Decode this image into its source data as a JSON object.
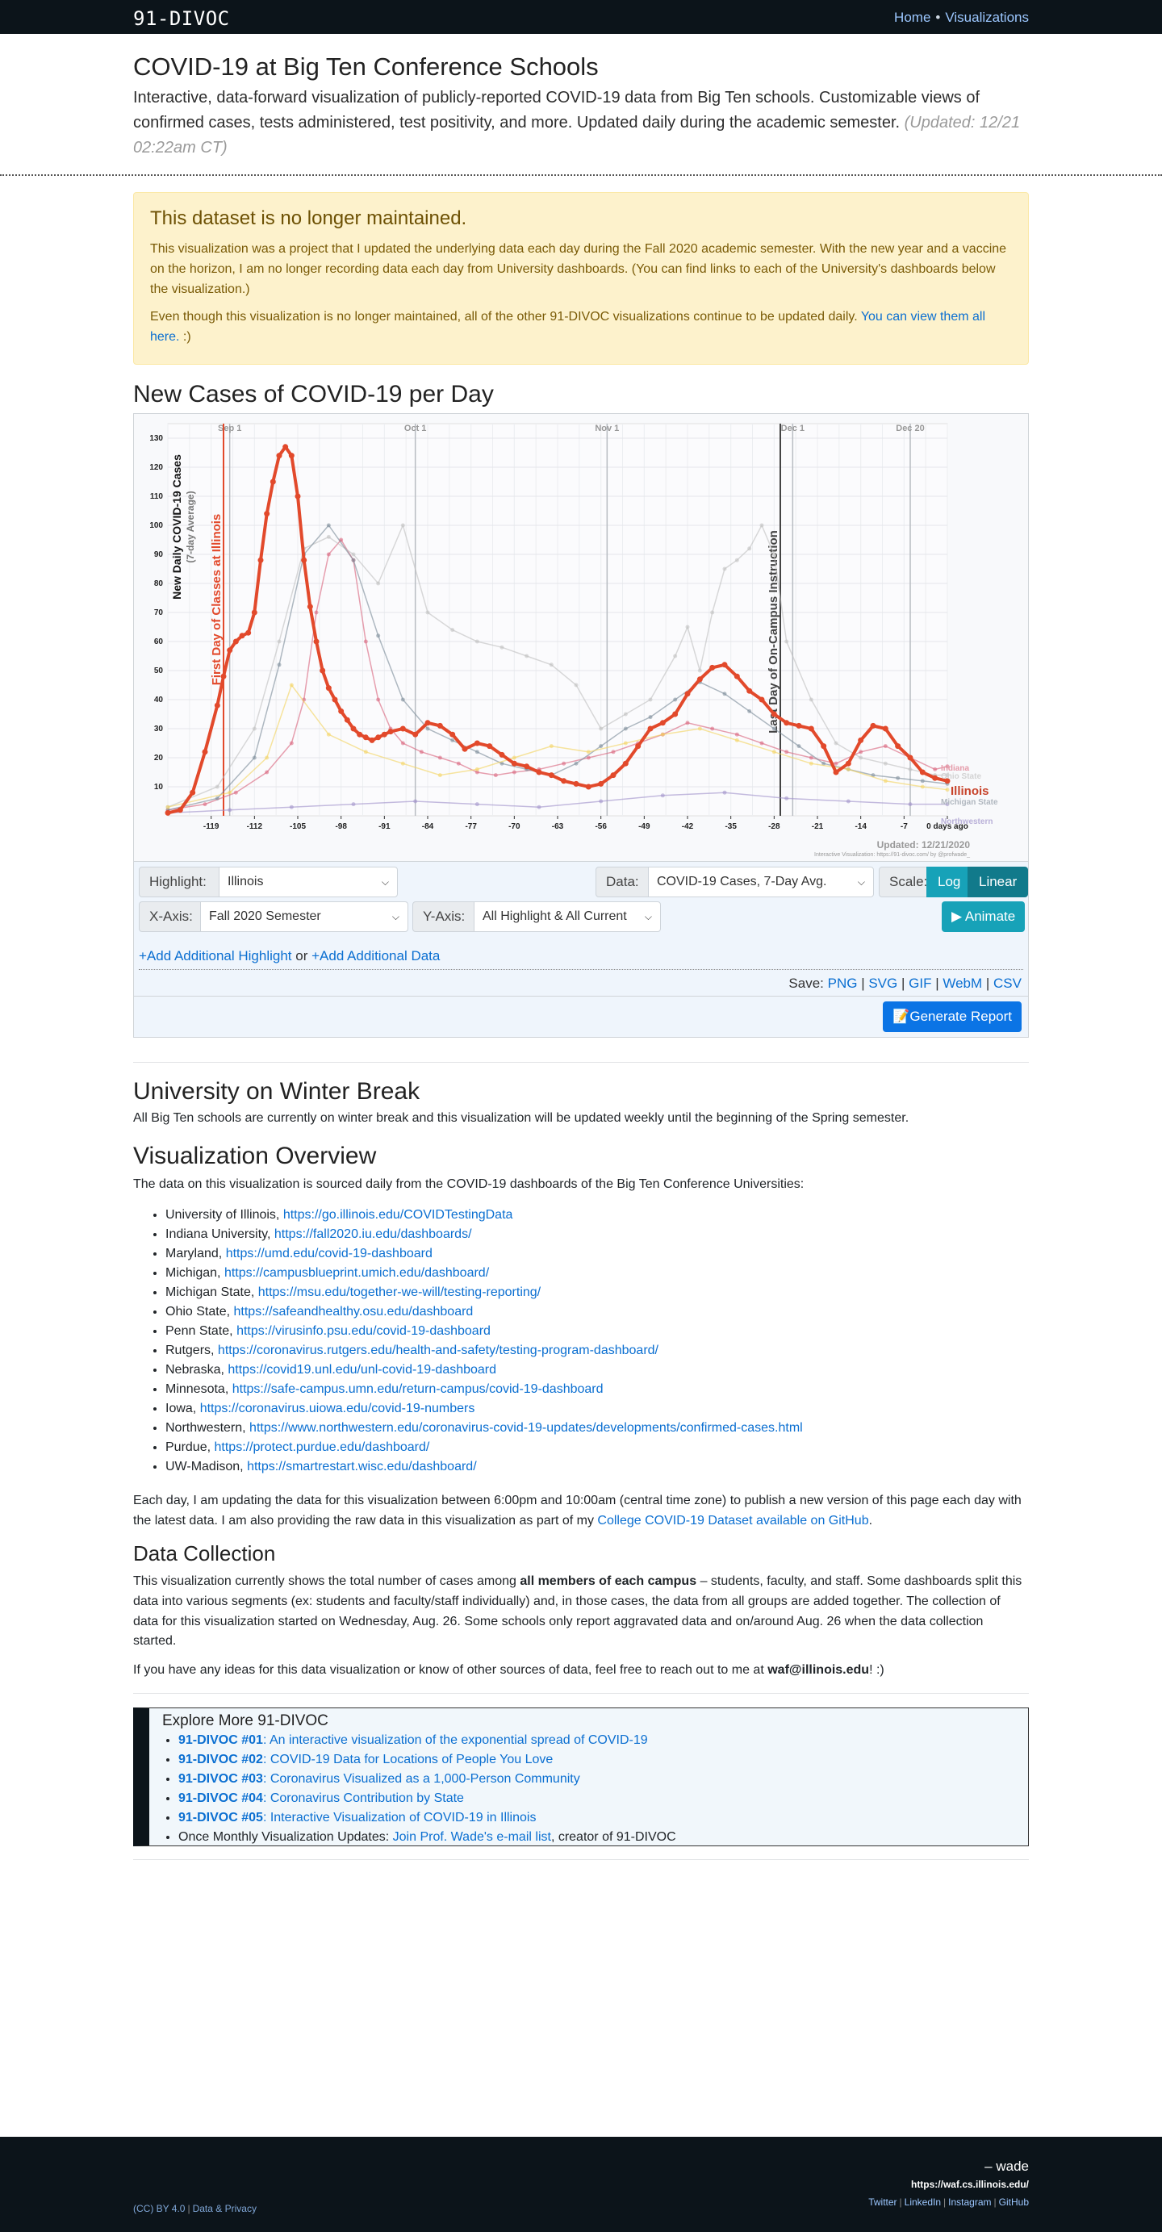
{
  "nav": {
    "brand": "91-DIVOC",
    "links": [
      "Home",
      "Visualizations"
    ],
    "separator": "•"
  },
  "header": {
    "title": "COVID-19 at Big Ten Conference Schools",
    "lead": "Interactive, data-forward visualization of publicly-reported COVID-19 data from Big Ten schools. Customizable views of confirmed cases, tests administered, test positivity, and more. Updated daily during the academic semester.",
    "updated": "(Updated: 12/21 02:22am CT)"
  },
  "alert": {
    "title": "This dataset is no longer maintained.",
    "p1": "This visualization was a project that I updated the underlying data each day during the Fall 2020 academic semester. With the new year and a vaccine on the horizon, I am no longer recording data each day from University dashboards. (You can find links to each of the University's dashboards below the visualization.)",
    "p2_text": "Even though this visualization is no longer maintained, all of the other 91-DIVOC visualizations continue to be updated daily.",
    "p2_link": "You can view them all here.",
    "p2_end": ":)"
  },
  "chart_section": {
    "title": "New Cases of COVID-19 per Day"
  },
  "chart_data": {
    "type": "line",
    "title": "",
    "ylabel": "New Daily COVID-19 Cases",
    "ylabel_sub": "(7-day Average)",
    "xlabel": "",
    "ylim": [
      0,
      135
    ],
    "xlim": [
      -126,
      0
    ],
    "yticks": [
      10,
      20,
      30,
      40,
      50,
      60,
      70,
      80,
      90,
      100,
      110,
      120,
      130
    ],
    "xticks": [
      -119,
      -112,
      -105,
      -98,
      -91,
      -84,
      -77,
      -70,
      -63,
      -56,
      -49,
      -42,
      -35,
      -28,
      -21,
      -14,
      -7,
      0
    ],
    "xtick_labels": [
      "-119",
      "-112",
      "-105",
      "-98",
      "-91",
      "-84",
      "-77",
      "-70",
      "-63",
      "-56",
      "-49",
      "-42",
      "-35",
      "-28",
      "-21",
      "-14",
      "-7",
      "0 days ago"
    ],
    "month_markers": [
      {
        "label": "Sep 1",
        "x": -116
      },
      {
        "label": "Oct 1",
        "x": -86
      },
      {
        "label": "Nov 1",
        "x": -55
      },
      {
        "label": "Dec 1",
        "x": -25
      },
      {
        "label": "Dec 20",
        "x": -6
      }
    ],
    "annotations": [
      {
        "label": "First Day of Classes at Illinois",
        "x": -117
      },
      {
        "label": "Last Day of On-Campus Instruction",
        "x": -27
      }
    ],
    "series_labels": [
      "Illinois",
      "Indiana",
      "Ohio State",
      "Michigan State",
      "Northwestern"
    ],
    "updated_label": "Updated: 12/21/2020",
    "credit": "Interactive Visualization: https://91-divoc.com/ by @profwade_",
    "grid": true,
    "series": [
      {
        "name": "Illinois",
        "color": "#e2492b",
        "highlight": true,
        "x": [
          -126,
          -124,
          -122,
          -120,
          -118,
          -117,
          -116,
          -115,
          -114,
          -113,
          -112,
          -111,
          -110,
          -109,
          -108,
          -107,
          -106,
          -105,
          -104,
          -103,
          -102,
          -101,
          -100,
          -99,
          -98,
          -97,
          -96,
          -95,
          -94,
          -93,
          -92,
          -91,
          -90,
          -88,
          -86,
          -84,
          -82,
          -80,
          -78,
          -76,
          -74,
          -72,
          -70,
          -68,
          -66,
          -64,
          -62,
          -60,
          -58,
          -56,
          -54,
          -52,
          -50,
          -48,
          -46,
          -44,
          -42,
          -40,
          -38,
          -36,
          -34,
          -32,
          -30,
          -28,
          -26,
          -24,
          -22,
          -20,
          -18,
          -16,
          -14,
          -12,
          -10,
          -8,
          -6,
          -4,
          -2,
          0
        ],
        "y": [
          1,
          2,
          8,
          22,
          38,
          48,
          57,
          60,
          62,
          63,
          70,
          88,
          104,
          115,
          124,
          127,
          124,
          110,
          88,
          72,
          60,
          50,
          44,
          40,
          36,
          33,
          30,
          28,
          27,
          26,
          27,
          28,
          29,
          30,
          28,
          32,
          31,
          28,
          23,
          25,
          24,
          21,
          18,
          17,
          15,
          14,
          12,
          11,
          10,
          11,
          14,
          18,
          24,
          30,
          32,
          35,
          42,
          47,
          51,
          52,
          48,
          43,
          40,
          35,
          32,
          31,
          30,
          24,
          15,
          18,
          26,
          31,
          30,
          24,
          20,
          15,
          13,
          12
        ]
      },
      {
        "name": "Indiana",
        "color": "#d9607a",
        "highlight": false,
        "x": [
          -126,
          -120,
          -115,
          -110,
          -106,
          -104,
          -102,
          -100,
          -98,
          -96,
          -94,
          -92,
          -90,
          -88,
          -85,
          -82,
          -79,
          -76,
          -73,
          -70,
          -66,
          -62,
          -58,
          -54,
          -50,
          -46,
          -42,
          -38,
          -34,
          -30,
          -26,
          -22,
          -18,
          -14,
          -10,
          -6,
          -2,
          0
        ],
        "y": [
          2,
          4,
          8,
          15,
          25,
          40,
          70,
          90,
          95,
          88,
          60,
          40,
          30,
          25,
          22,
          20,
          18,
          15,
          14,
          15,
          16,
          18,
          20,
          22,
          25,
          28,
          32,
          30,
          28,
          25,
          22,
          20,
          18,
          22,
          24,
          20,
          16,
          17
        ]
      },
      {
        "name": "Ohio State",
        "color": "#bfbfbf",
        "highlight": false,
        "x": [
          -126,
          -118,
          -112,
          -108,
          -104,
          -100,
          -96,
          -92,
          -88,
          -84,
          -80,
          -76,
          -72,
          -68,
          -64,
          -60,
          -56,
          -52,
          -48,
          -44,
          -42,
          -40,
          -38,
          -36,
          -34,
          -32,
          -30,
          -28,
          -26,
          -22,
          -18,
          -14,
          -10,
          -6,
          -2,
          0
        ],
        "y": [
          3,
          10,
          30,
          60,
          92,
          96,
          90,
          80,
          100,
          70,
          64,
          60,
          58,
          55,
          52,
          45,
          30,
          35,
          40,
          55,
          65,
          50,
          70,
          85,
          88,
          92,
          100,
          90,
          60,
          40,
          25,
          20,
          18,
          16,
          14,
          14
        ]
      },
      {
        "name": "Michigan State",
        "color": "#7a8a98",
        "highlight": false,
        "x": [
          -126,
          -118,
          -112,
          -108,
          -104,
          -100,
          -96,
          -92,
          -88,
          -84,
          -80,
          -76,
          -72,
          -68,
          -64,
          -60,
          -56,
          -52,
          -48,
          -44,
          -40,
          -36,
          -32,
          -28,
          -24,
          -20,
          -16,
          -12,
          -8,
          -4,
          0
        ],
        "y": [
          2,
          6,
          20,
          52,
          90,
          100,
          88,
          62,
          40,
          30,
          26,
          22,
          18,
          16,
          14,
          18,
          24,
          30,
          34,
          40,
          46,
          42,
          36,
          30,
          24,
          18,
          16,
          14,
          13,
          12,
          11
        ]
      },
      {
        "name": "Northwestern",
        "color": "#9e8fc9",
        "highlight": false,
        "x": [
          -126,
          -116,
          -106,
          -96,
          -86,
          -76,
          -66,
          -56,
          -46,
          -36,
          -26,
          -16,
          -6,
          0
        ],
        "y": [
          1,
          2,
          3,
          4,
          5,
          4,
          3,
          5,
          7,
          8,
          6,
          5,
          4,
          4
        ]
      },
      {
        "name": "Maryland",
        "color": "#f4d35e",
        "highlight": false,
        "x": [
          -126,
          -116,
          -110,
          -106,
          -100,
          -94,
          -88,
          -82,
          -76,
          -70,
          -64,
          -58,
          -52,
          -46,
          -40,
          -34,
          -28,
          -22,
          -16,
          -10,
          -4,
          0
        ],
        "y": [
          3,
          8,
          20,
          45,
          28,
          22,
          18,
          14,
          16,
          20,
          24,
          22,
          25,
          28,
          30,
          26,
          22,
          18,
          16,
          12,
          10,
          9
        ]
      }
    ]
  },
  "controls": {
    "highlight_label": "Highlight:",
    "highlight_value": "Illinois",
    "data_label": "Data:",
    "data_value": "COVID-19 Cases, 7-Day Avg.",
    "scale_label": "Scale:",
    "scale_log": "Log",
    "scale_linear": "Linear",
    "xaxis_label": "X-Axis:",
    "xaxis_value": "Fall 2020 Semester",
    "yaxis_label": "Y-Axis:",
    "yaxis_value": "All Highlight & All Current",
    "animate": "▶ Animate",
    "add_highlight": "+Add Additional Highlight",
    "add_or": "or",
    "add_data": "+Add Additional Data",
    "save_label": "Save:",
    "save_formats": [
      "PNG",
      "SVG",
      "GIF",
      "WebM",
      "CSV"
    ],
    "generate_report": "Generate Report"
  },
  "winter": {
    "title": "University on Winter Break",
    "text": "All Big Ten schools are currently on winter break and this visualization will be updated weekly until the beginning of the Spring semester."
  },
  "overview": {
    "title": "Visualization Overview",
    "intro": "The data on this visualization is sourced daily from the COVID-19 dashboards of the Big Ten Conference Universities:",
    "sources": [
      {
        "name": "University of Illinois,",
        "url": "https://go.illinois.edu/COVIDTestingData"
      },
      {
        "name": "Indiana University,",
        "url": "https://fall2020.iu.edu/dashboards/"
      },
      {
        "name": "Maryland,",
        "url": "https://umd.edu/covid-19-dashboard"
      },
      {
        "name": "Michigan,",
        "url": "https://campusblueprint.umich.edu/dashboard/"
      },
      {
        "name": "Michigan State,",
        "url": "https://msu.edu/together-we-will/testing-reporting/"
      },
      {
        "name": "Ohio State,",
        "url": "https://safeandhealthy.osu.edu/dashboard"
      },
      {
        "name": "Penn State,",
        "url": "https://virusinfo.psu.edu/covid-19-dashboard"
      },
      {
        "name": "Rutgers,",
        "url": "https://coronavirus.rutgers.edu/health-and-safety/testing-program-dashboard/"
      },
      {
        "name": "Nebraska,",
        "url": "https://covid19.unl.edu/unl-covid-19-dashboard"
      },
      {
        "name": "Minnesota,",
        "url": "https://safe-campus.umn.edu/return-campus/covid-19-dashboard"
      },
      {
        "name": "Iowa,",
        "url": "https://coronavirus.uiowa.edu/covid-19-numbers"
      },
      {
        "name": "Northwestern,",
        "url": "https://www.northwestern.edu/coronavirus-covid-19-updates/developments/confirmed-cases.html"
      },
      {
        "name": "Purdue,",
        "url": "https://protect.purdue.edu/dashboard/"
      },
      {
        "name": "UW-Madison,",
        "url": "https://smartrestart.wisc.edu/dashboard/"
      }
    ],
    "daily_text": "Each day, I am updating the data for this visualization between 6:00pm and 10:00am (central time zone) to publish a new version of this page each day with the latest data. I am also providing the raw data in this visualization as part of my",
    "daily_link": "College COVID-19 Dataset available on GitHub",
    "daily_end": "."
  },
  "collection": {
    "title": "Data Collection",
    "text_a": "This visualization currently shows the total number of cases among",
    "text_bold": "all members of each campus",
    "text_b": "– students, faculty, and staff. Some dashboards split this data into various segments (ex: students and faculty/staff individually) and, in those cases, the data from all groups are added together. The collection of data for this visualization started on Wednesday, Aug. 26. Some schools only report aggravated data and on/around Aug. 26 when the data collection started.",
    "ideas_a": "If you have any ideas for this data visualization or know of other sources of data, feel free to reach out to me at",
    "ideas_email": "waf@illinois.edu",
    "ideas_end": "! :)"
  },
  "explore": {
    "title": "Explore More 91-DIVOC",
    "items": [
      {
        "num": "91-DIVOC #01",
        "text": ": An interactive visualization of the exponential spread of COVID-19"
      },
      {
        "num": "91-DIVOC #02",
        "text": ": COVID-19 Data for Locations of People You Love"
      },
      {
        "num": "91-DIVOC #03",
        "text": ": Coronavirus Visualized as a 1,000-Person Community"
      },
      {
        "num": "91-DIVOC #04",
        "text": ": Coronavirus Contribution by State"
      },
      {
        "num": "91-DIVOC #05",
        "text": ": Interactive Visualization of COVID-19 in Illinois"
      }
    ],
    "monthly_a": "Once Monthly Visualization Updates:",
    "monthly_link": "Join Prof. Wade's e-mail list",
    "monthly_end": ", creator of 91-DIVOC"
  },
  "footer": {
    "signature": "– wade",
    "url": "https://waf.cs.illinois.edu/",
    "social": [
      "Twitter",
      "LinkedIn",
      "Instagram",
      "GitHub"
    ],
    "license": "(CC) BY 4.0",
    "privacy": "Data & Privacy",
    "separator": "|"
  }
}
